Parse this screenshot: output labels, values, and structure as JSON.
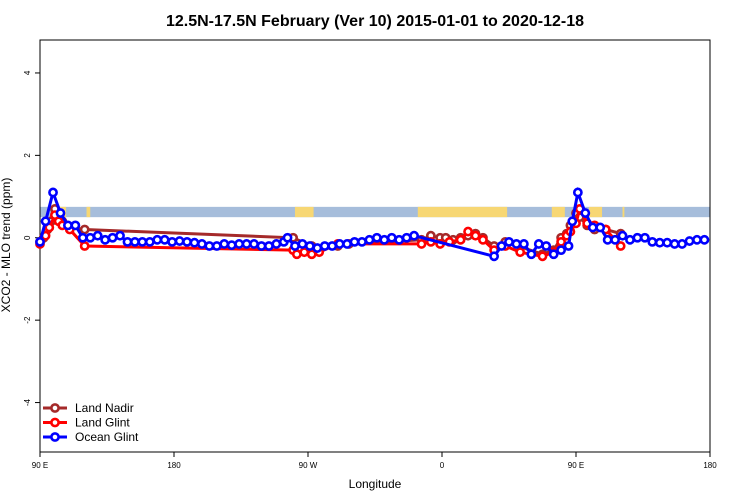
{
  "chart_data": {
    "type": "line",
    "title": "12.5N-17.5N February (Ver 10)   2015-01-01 to 2020-12-18",
    "xlabel": "Longitude",
    "ylabel": "XCO2 - MLO trend (ppm)",
    "xlim": [
      0,
      360
    ],
    "ylim": [
      -5.2,
      4.8
    ],
    "xticks": [
      {
        "value": 0,
        "label": "90 E"
      },
      {
        "value": 72,
        "label": "180"
      },
      {
        "value": 144,
        "label": "90 W"
      },
      {
        "value": 216,
        "label": "0"
      },
      {
        "value": 288,
        "label": "90 E"
      },
      {
        "value": 360,
        "label": "180"
      }
    ],
    "yticks": [
      {
        "value": -4,
        "label": "-4"
      },
      {
        "value": -2,
        "label": "-2"
      },
      {
        "value": 0,
        "label": "0"
      },
      {
        "value": 2,
        "label": "2"
      },
      {
        "value": 4,
        "label": "4"
      }
    ],
    "land_mask": {
      "band": [
        0.5,
        0.75
      ],
      "ocean_color": "#a6bddb",
      "land_color": "#f7d774",
      "land_segments": [
        [
          7,
          14
        ],
        [
          25,
          27
        ],
        [
          137,
          147
        ],
        [
          203,
          251
        ],
        [
          275,
          282
        ],
        [
          295,
          302
        ],
        [
          313,
          314
        ]
      ]
    },
    "legend_position": "bottom-left",
    "series": [
      {
        "name": "Land Nadir",
        "color": "#a52a2a",
        "points": [
          [
            0,
            -0.1
          ],
          [
            2,
            0.0
          ],
          [
            4,
            0.2
          ],
          [
            6,
            0.4
          ],
          [
            8,
            0.7
          ],
          [
            10,
            0.5
          ],
          [
            12,
            0.4
          ],
          [
            16,
            0.25
          ],
          [
            24,
            0.2
          ],
          [
            136,
            0.0
          ],
          [
            146,
            -0.2
          ],
          [
            160,
            -0.2
          ],
          [
            166,
            -0.15
          ],
          [
            205,
            -0.05
          ],
          [
            210,
            0.05
          ],
          [
            215,
            0.0
          ],
          [
            218,
            0.0
          ],
          [
            222,
            -0.05
          ],
          [
            226,
            0.0
          ],
          [
            230,
            0.05
          ],
          [
            234,
            0.1
          ],
          [
            238,
            0.0
          ],
          [
            244,
            -0.2
          ],
          [
            250,
            -0.1
          ],
          [
            270,
            -0.4
          ],
          [
            276,
            -0.3
          ],
          [
            280,
            0.0
          ],
          [
            283,
            0.1
          ],
          [
            285,
            0.3
          ],
          [
            288,
            0.6
          ],
          [
            290,
            0.5
          ],
          [
            294,
            0.3
          ],
          [
            298,
            0.2
          ],
          [
            304,
            0.2
          ],
          [
            312,
            0.1
          ]
        ]
      },
      {
        "name": "Land Glint",
        "color": "#ff0000",
        "points": [
          [
            0,
            -0.15
          ],
          [
            3,
            0.05
          ],
          [
            5,
            0.25
          ],
          [
            8,
            0.55
          ],
          [
            10,
            0.4
          ],
          [
            12,
            0.3
          ],
          [
            16,
            0.2
          ],
          [
            24,
            -0.2
          ],
          [
            136,
            -0.3
          ],
          [
            138,
            -0.4
          ],
          [
            140,
            -0.25
          ],
          [
            142,
            -0.35
          ],
          [
            146,
            -0.4
          ],
          [
            150,
            -0.35
          ],
          [
            160,
            -0.15
          ],
          [
            205,
            -0.15
          ],
          [
            210,
            -0.1
          ],
          [
            215,
            -0.15
          ],
          [
            220,
            -0.1
          ],
          [
            226,
            -0.05
          ],
          [
            230,
            0.15
          ],
          [
            234,
            0.05
          ],
          [
            238,
            -0.05
          ],
          [
            244,
            -0.3
          ],
          [
            250,
            -0.2
          ],
          [
            258,
            -0.35
          ],
          [
            270,
            -0.45
          ],
          [
            276,
            -0.35
          ],
          [
            280,
            -0.1
          ],
          [
            283,
            0.05
          ],
          [
            285,
            0.15
          ],
          [
            288,
            0.35
          ],
          [
            290,
            0.7
          ],
          [
            294,
            0.35
          ],
          [
            298,
            0.3
          ],
          [
            304,
            0.2
          ],
          [
            312,
            -0.2
          ]
        ]
      },
      {
        "name": "Ocean Glint",
        "color": "#0000ff",
        "points": [
          [
            0,
            -0.1
          ],
          [
            3,
            0.4
          ],
          [
            7,
            1.1
          ],
          [
            11,
            0.6
          ],
          [
            15,
            0.3
          ],
          [
            19,
            0.3
          ],
          [
            23,
            0.0
          ],
          [
            27,
            0.0
          ],
          [
            31,
            0.05
          ],
          [
            35,
            -0.05
          ],
          [
            39,
            0.0
          ],
          [
            43,
            0.05
          ],
          [
            47,
            -0.1
          ],
          [
            51,
            -0.1
          ],
          [
            55,
            -0.1
          ],
          [
            59,
            -0.1
          ],
          [
            63,
            -0.05
          ],
          [
            67,
            -0.05
          ],
          [
            71,
            -0.1
          ],
          [
            75,
            -0.08
          ],
          [
            79,
            -0.1
          ],
          [
            83,
            -0.12
          ],
          [
            87,
            -0.15
          ],
          [
            91,
            -0.2
          ],
          [
            95,
            -0.2
          ],
          [
            99,
            -0.15
          ],
          [
            103,
            -0.18
          ],
          [
            107,
            -0.15
          ],
          [
            111,
            -0.15
          ],
          [
            115,
            -0.15
          ],
          [
            119,
            -0.2
          ],
          [
            123,
            -0.2
          ],
          [
            127,
            -0.15
          ],
          [
            131,
            -0.1
          ],
          [
            133,
            0.0
          ],
          [
            137,
            -0.2
          ],
          [
            141,
            -0.15
          ],
          [
            145,
            -0.2
          ],
          [
            149,
            -0.25
          ],
          [
            153,
            -0.2
          ],
          [
            157,
            -0.2
          ],
          [
            161,
            -0.15
          ],
          [
            165,
            -0.15
          ],
          [
            169,
            -0.1
          ],
          [
            173,
            -0.1
          ],
          [
            177,
            -0.05
          ],
          [
            181,
            0.0
          ],
          [
            185,
            -0.05
          ],
          [
            189,
            0.0
          ],
          [
            193,
            -0.05
          ],
          [
            197,
            0.0
          ],
          [
            201,
            0.05
          ],
          [
            244,
            -0.45
          ],
          [
            248,
            -0.2
          ],
          [
            252,
            -0.1
          ],
          [
            256,
            -0.15
          ],
          [
            260,
            -0.15
          ],
          [
            264,
            -0.4
          ],
          [
            268,
            -0.15
          ],
          [
            272,
            -0.2
          ],
          [
            276,
            -0.4
          ],
          [
            280,
            -0.3
          ],
          [
            284,
            -0.2
          ],
          [
            286,
            0.4
          ],
          [
            289,
            1.1
          ],
          [
            293,
            0.6
          ],
          [
            297,
            0.25
          ],
          [
            301,
            0.25
          ],
          [
            305,
            -0.05
          ],
          [
            309,
            -0.05
          ],
          [
            313,
            0.05
          ],
          [
            317,
            -0.05
          ],
          [
            321,
            0.0
          ],
          [
            325,
            0.0
          ],
          [
            329,
            -0.1
          ],
          [
            333,
            -0.12
          ],
          [
            337,
            -0.12
          ],
          [
            341,
            -0.15
          ],
          [
            345,
            -0.15
          ],
          [
            349,
            -0.08
          ],
          [
            353,
            -0.05
          ],
          [
            357,
            -0.05
          ]
        ]
      }
    ]
  }
}
